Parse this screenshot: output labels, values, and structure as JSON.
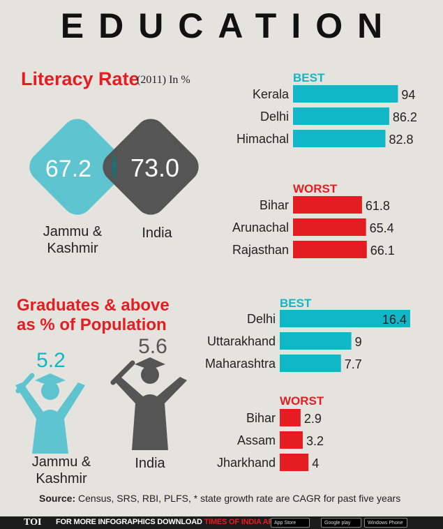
{
  "title": "EDUCATION",
  "literacy": {
    "heading": "Literacy Rate",
    "subheading": "(2011) In %",
    "jk_value": "67.2",
    "india_value": "73.0",
    "jk_label_1": "Jammu &",
    "jk_label_2": "Kashmir",
    "india_label": "India"
  },
  "graduates": {
    "heading_1": "Graduates & above",
    "heading_2": "as % of Population",
    "jk_value": "5.2",
    "india_value": "5.6",
    "jk_label_1": "Jammu &",
    "jk_label_2": "Kashmir",
    "india_label": "India"
  },
  "colors": {
    "teal": "#10b8c7",
    "red": "#e41d22",
    "gray": "#555555",
    "light_teal": "#5ec4d0"
  },
  "chart_data": [
    {
      "type": "bar",
      "title": "BEST",
      "categories": [
        "Kerala",
        "Delhi",
        "Himachal"
      ],
      "values": [
        94,
        86.2,
        82.8
      ],
      "labels": [
        "94",
        "86.2",
        "82.8"
      ]
    },
    {
      "type": "bar",
      "title": "WORST",
      "categories": [
        "Bihar",
        "Arunachal",
        "Rajasthan"
      ],
      "values": [
        61.8,
        65.4,
        66.1
      ],
      "labels": [
        "61.8",
        "65.4",
        "66.1"
      ]
    },
    {
      "type": "bar",
      "title": "BEST",
      "categories": [
        "Delhi",
        "Uttarakhand",
        "Maharashtra"
      ],
      "values": [
        16.4,
        9,
        7.7
      ],
      "labels": [
        "16.4",
        "9",
        "7.7"
      ]
    },
    {
      "type": "bar",
      "title": "WORST",
      "categories": [
        "Bihar",
        "Assam",
        "Jharkhand"
      ],
      "values": [
        2.9,
        3.2,
        4
      ],
      "labels": [
        "2.9",
        "3.2",
        "4"
      ]
    }
  ],
  "source_label": "Source:",
  "source_text": " Census, SRS, RBI, PLFS, * state growth rate are CAGR for past five years",
  "footer": {
    "logo": "TOI",
    "text_1": "FOR MORE  INFOGRAPHICS DOWNLOAD ",
    "text_2": "TIMES OF INDIA APP",
    "store_1": "App Store",
    "store_2": "Google play",
    "store_3": "Windows Phone"
  }
}
